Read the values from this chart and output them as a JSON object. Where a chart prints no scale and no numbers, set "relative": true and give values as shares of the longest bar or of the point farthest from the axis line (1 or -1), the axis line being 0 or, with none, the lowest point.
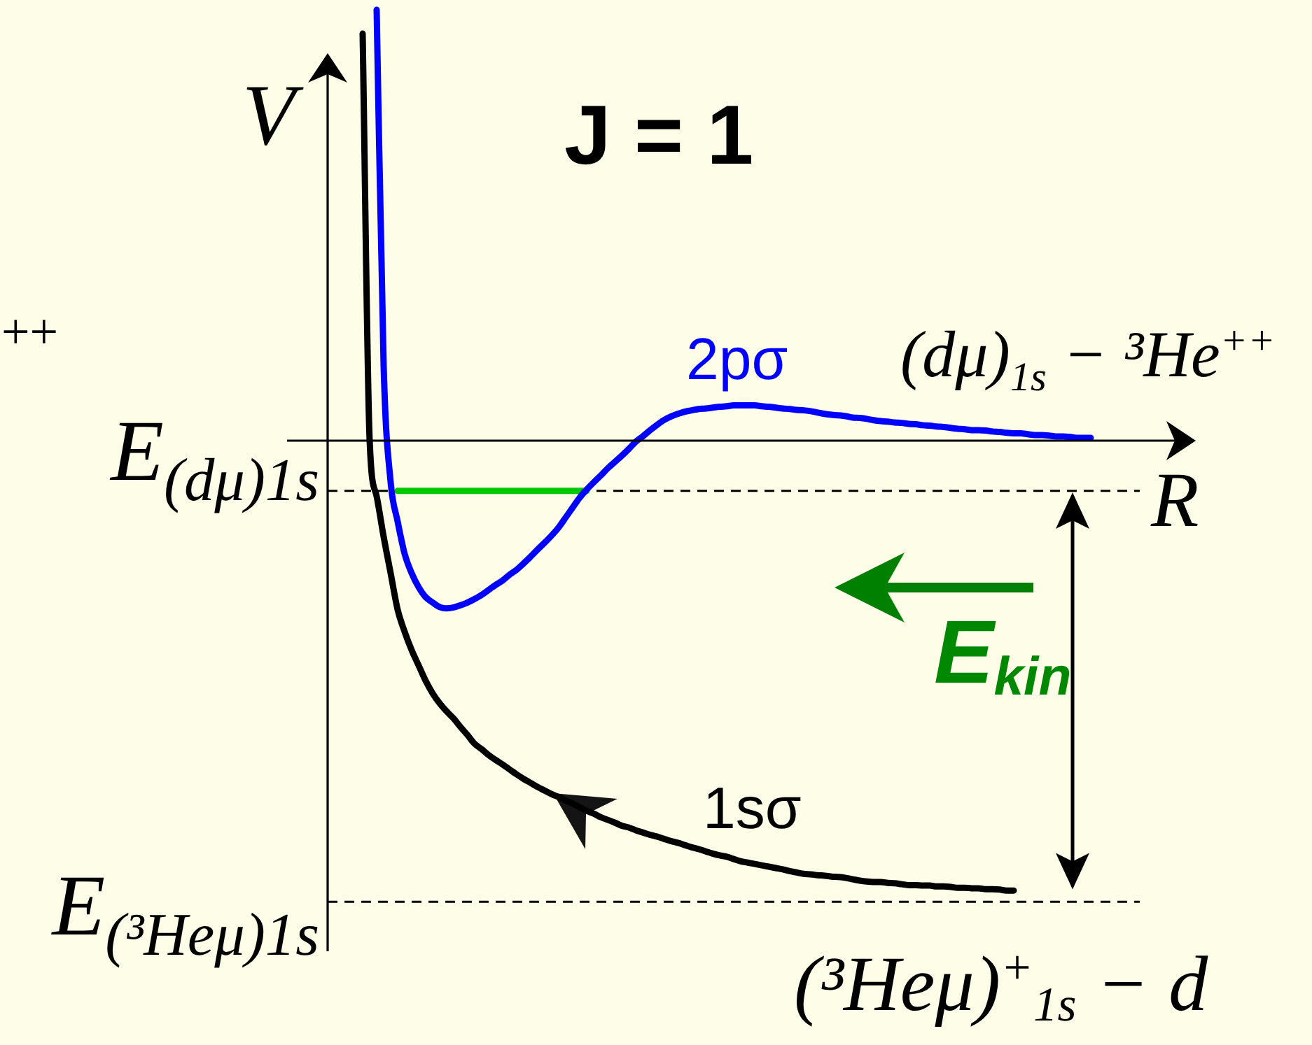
{
  "chart_data": {
    "type": "line",
    "relative": true,
    "title": "J = 1",
    "xlabel": "R",
    "ylabel": "V",
    "legend": false,
    "marker": "none",
    "categories": [
      null,
      null,
      null,
      null,
      null,
      null,
      null,
      null,
      null,
      null,
      null,
      null,
      null,
      null,
      null,
      null,
      null,
      null,
      null,
      null,
      null,
      null,
      null,
      null,
      null,
      null,
      null,
      null,
      null,
      null,
      null,
      null,
      null,
      null,
      null,
      null,
      null,
      null,
      null,
      null,
      null,
      null,
      null,
      null,
      null,
      null,
      null,
      null,
      null,
      null,
      null,
      null,
      null,
      null,
      null,
      null,
      null,
      null,
      null,
      null,
      null,
      null,
      null,
      null,
      null,
      null,
      null,
      null,
      null,
      null,
      null,
      null,
      null,
      null,
      null,
      null,
      null,
      null,
      null,
      null,
      null,
      null,
      null,
      null,
      null,
      null,
      null,
      null,
      null,
      null,
      null,
      null,
      null,
      null,
      null,
      null,
      null,
      null,
      null,
      null,
      null,
      null,
      null,
      null,
      null,
      null,
      null,
      null,
      null,
      null,
      null,
      null,
      null,
      null,
      null,
      null,
      null
    ],
    "series": [
      {
        "name": "1sσ",
        "color": "#000000",
        "values": [
          null,
          null,
          null,
          null,
          null,
          0.904,
          0.0,
          -0.124,
          -0.214,
          -0.295,
          -0.376,
          -0.425,
          -0.466,
          -0.5,
          -0.534,
          -0.562,
          -0.584,
          -0.602,
          -0.618,
          -0.637,
          -0.655,
          -0.674,
          -0.686,
          -0.699,
          -0.71,
          -0.72,
          -0.731,
          -0.742,
          -0.752,
          -0.761,
          -0.77,
          -0.778,
          -0.786,
          -0.792,
          -0.8,
          -0.807,
          -0.815,
          -0.823,
          -0.829,
          -0.837,
          -0.843,
          -0.849,
          -0.856,
          -0.86,
          -0.866,
          -0.871,
          -0.876,
          -0.88,
          -0.885,
          -0.89,
          -0.894,
          -0.899,
          -0.904,
          -0.908,
          -0.913,
          -0.918,
          -0.922,
          -0.925,
          -0.93,
          -0.935,
          -0.938,
          -0.941,
          -0.944,
          -0.947,
          -0.95,
          -0.953,
          -0.957,
          -0.96,
          -0.963,
          -0.964,
          -0.966,
          -0.967,
          -0.969,
          -0.97,
          -0.972,
          -0.975,
          -0.978,
          -0.98,
          -0.981,
          -0.981,
          -0.983,
          -0.984,
          -0.986,
          -0.988,
          -0.988,
          -0.989,
          -0.989,
          -0.991,
          -0.991,
          -0.992,
          -0.994,
          -0.994,
          -0.995,
          -0.995,
          -0.997,
          -0.997,
          -0.998,
          -1.0,
          -1.0,
          null,
          null,
          null,
          null,
          null,
          null,
          null,
          null,
          null,
          null,
          null,
          null,
          null,
          null,
          null,
          null,
          null,
          null
        ]
      },
      {
        "name": "2pσ",
        "color": "#0000ff",
        "values": [
          null,
          null,
          null,
          null,
          null,
          null,
          null,
          0.957,
          0.165,
          -0.093,
          -0.18,
          -0.252,
          -0.295,
          -0.326,
          -0.348,
          -0.36,
          -0.37,
          -0.373,
          -0.371,
          -0.366,
          -0.36,
          -0.352,
          -0.343,
          -0.332,
          -0.321,
          -0.311,
          -0.298,
          -0.287,
          -0.273,
          -0.258,
          -0.242,
          -0.227,
          -0.211,
          -0.193,
          -0.171,
          -0.149,
          -0.127,
          -0.109,
          -0.093,
          -0.078,
          -0.062,
          -0.048,
          -0.034,
          -0.019,
          -0.003,
          0.009,
          0.022,
          0.034,
          0.045,
          0.053,
          0.059,
          0.064,
          0.067,
          0.07,
          0.071,
          0.073,
          0.075,
          0.076,
          0.078,
          0.078,
          0.078,
          0.078,
          0.076,
          0.075,
          0.073,
          0.071,
          0.07,
          0.068,
          0.067,
          0.065,
          0.062,
          0.059,
          0.057,
          0.056,
          0.054,
          0.051,
          0.05,
          0.048,
          0.045,
          0.043,
          0.042,
          0.04,
          0.039,
          0.037,
          0.036,
          0.034,
          0.033,
          0.031,
          0.03,
          0.028,
          0.026,
          0.025,
          0.023,
          0.023,
          0.022,
          0.02,
          0.019,
          0.017,
          0.016,
          0.016,
          0.014,
          0.012,
          0.012,
          0.011,
          0.009,
          0.009,
          0.008,
          0.006,
          0.006,
          0.006,
          null,
          null,
          null,
          null,
          null,
          null,
          null
        ]
      },
      {
        "color": "#00c800",
        "values": [
          null,
          null,
          null,
          null,
          null,
          null,
          null,
          null,
          null,
          null,
          -0.112,
          -0.112,
          -0.112,
          -0.112,
          -0.112,
          -0.112,
          -0.112,
          -0.112,
          -0.112,
          -0.112,
          -0.112,
          -0.112,
          -0.112,
          -0.112,
          -0.112,
          -0.112,
          -0.112,
          -0.112,
          -0.112,
          -0.112,
          -0.112,
          -0.112,
          -0.112,
          -0.112,
          -0.112,
          -0.112,
          -0.112,
          -0.112,
          null,
          null,
          null,
          null,
          null,
          null,
          null,
          null,
          null,
          null,
          null,
          null,
          null,
          null,
          null,
          null,
          null,
          null,
          null,
          null,
          null,
          null,
          null,
          null,
          null,
          null,
          null,
          null,
          null,
          null,
          null,
          null,
          null,
          null,
          null,
          null,
          null,
          null,
          null,
          null,
          null,
          null,
          null,
          null,
          null,
          null,
          null,
          null,
          null,
          null,
          null,
          null,
          null,
          null,
          null,
          null,
          null,
          null,
          null,
          null,
          null,
          null,
          null,
          null,
          null,
          null,
          null,
          null,
          null,
          null,
          null,
          null,
          null,
          null,
          null,
          null,
          null,
          null,
          null
        ]
      }
    ],
    "ref_lines": [
      {
        "axis": "y",
        "value": -0.112,
        "label": "E$_{(dμ)1s}$",
        "color": "#000000",
        "line_style": "dashed"
      },
      {
        "axis": "y",
        "value": -1.025,
        "label": "E$_{(³Heμ)1s}$",
        "color": "#000000",
        "line_style": "dashed"
      }
    ],
    "annotations": [
      "(dμ)$_{1s}$ − ³He$^{++}$",
      "(³Heμ)$^{+}$$_{1s}$ − d",
      "E$_{kin}$",
      "++"
    ]
  }
}
